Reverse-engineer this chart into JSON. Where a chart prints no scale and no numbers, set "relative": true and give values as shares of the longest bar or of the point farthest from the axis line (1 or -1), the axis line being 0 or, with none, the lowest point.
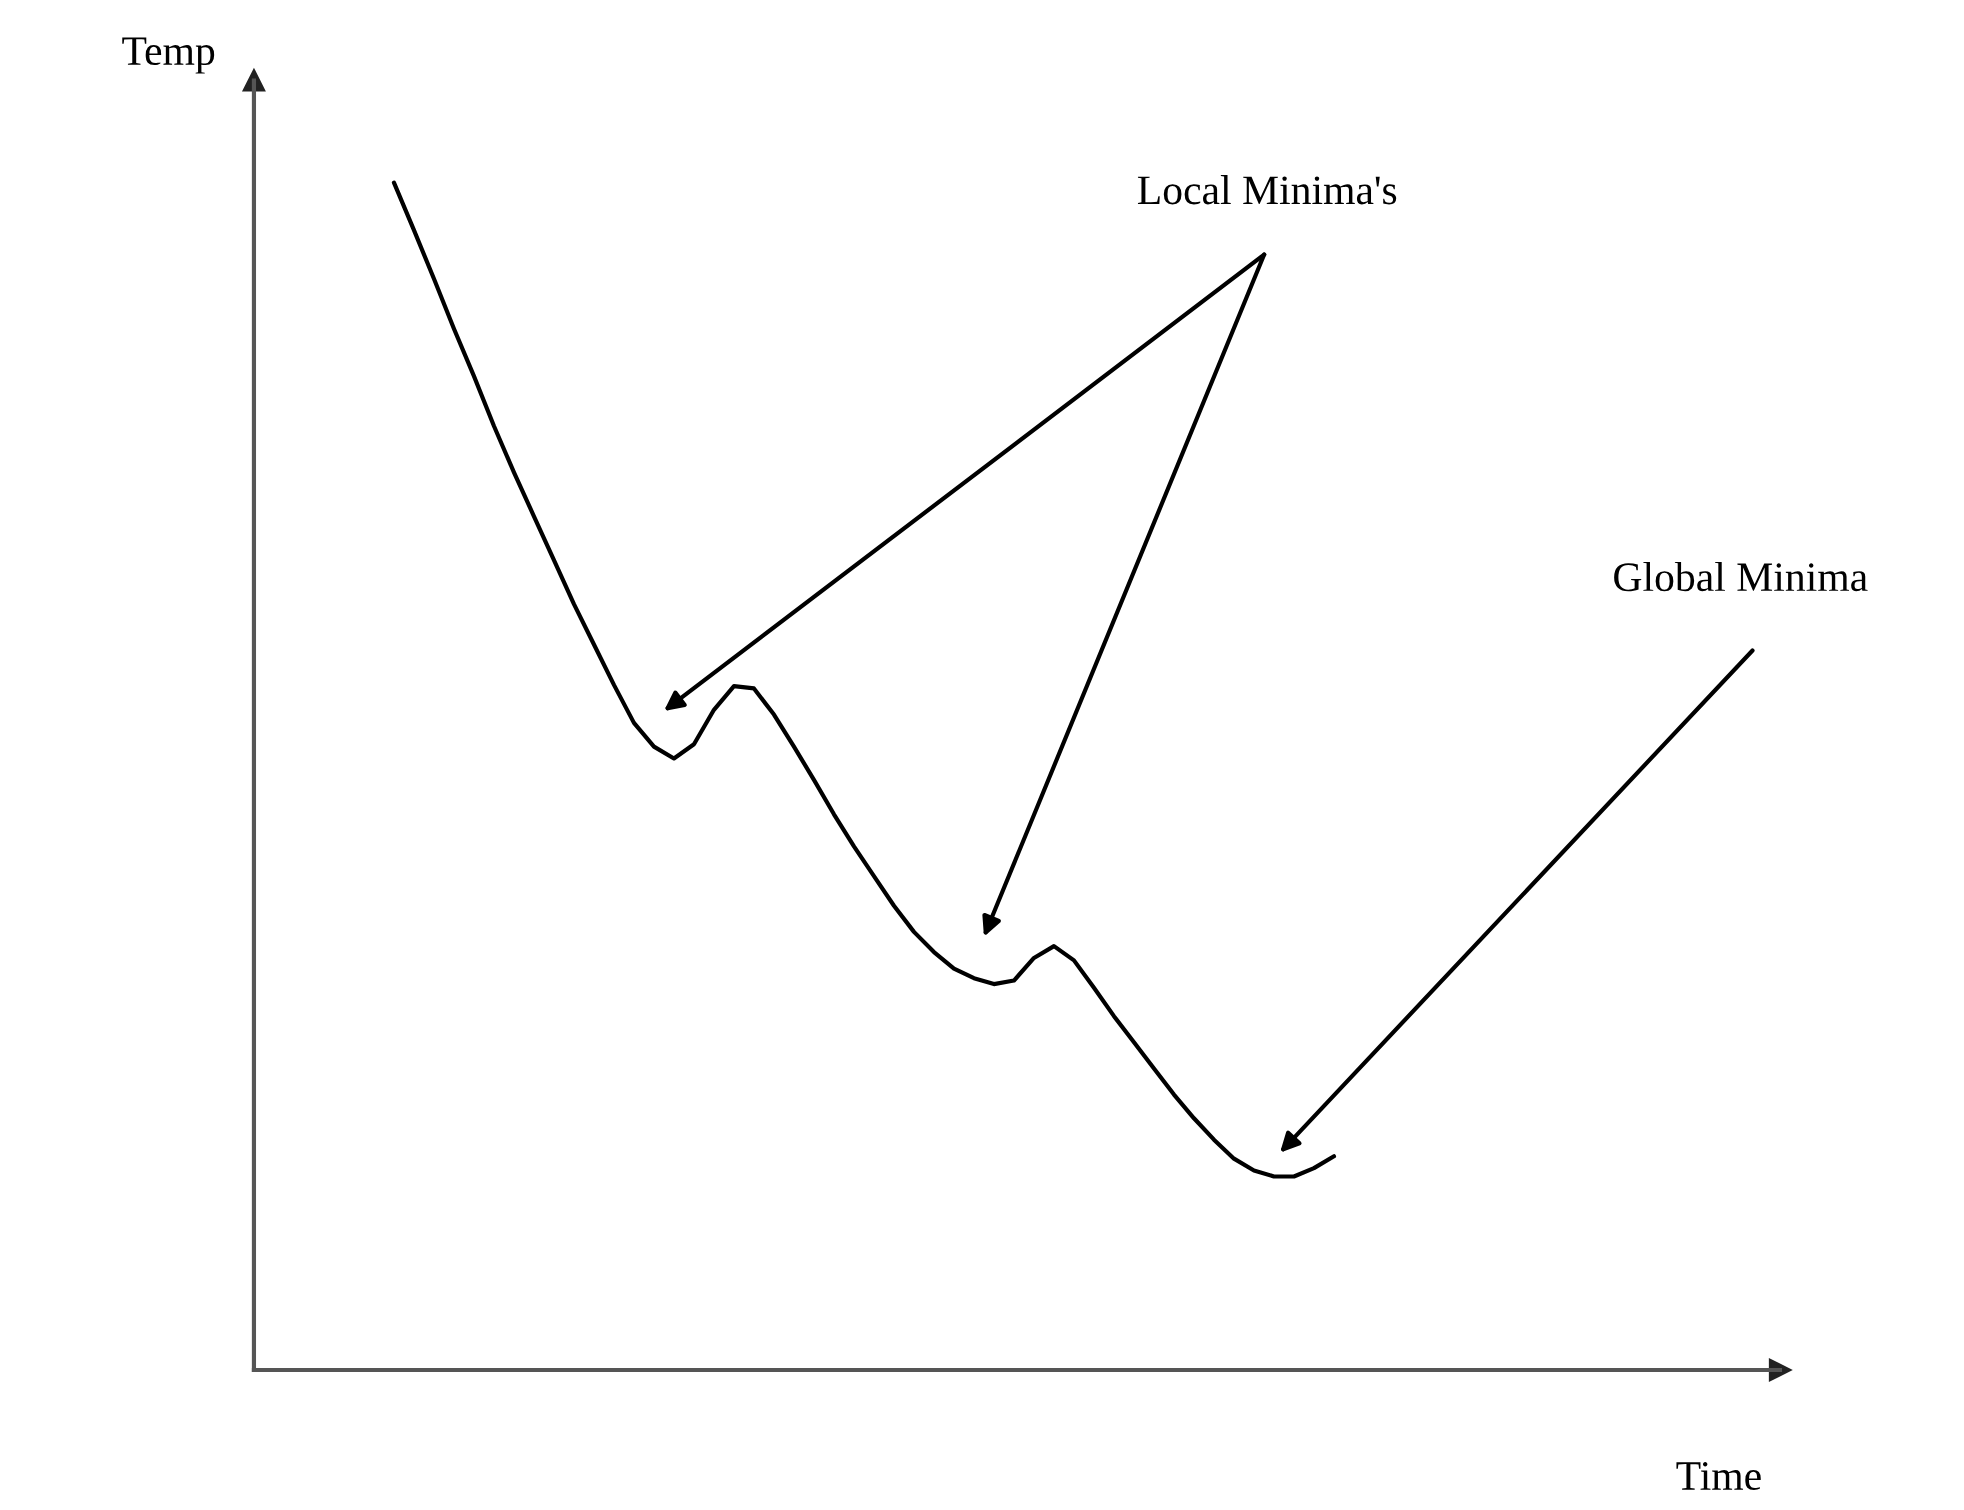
{
  "chart_data": {
    "type": "line",
    "relative": true,
    "ylabel": "Temp",
    "categories": [
      null,
      null,
      null,
      null,
      null,
      null,
      null,
      null,
      null,
      null,
      null,
      null,
      null,
      null,
      null,
      null,
      null,
      null,
      null,
      null,
      null,
      null,
      null,
      null,
      null,
      null,
      null,
      null,
      null,
      null,
      null,
      null,
      null,
      null,
      null,
      null,
      null,
      null,
      null,
      null,
      null,
      null,
      null,
      null,
      null,
      null,
      null,
      null
    ],
    "series": [
      {
        "color": "#000000",
        "values": [
          1.0,
          0.96,
          0.919,
          0.877,
          0.837,
          0.795,
          0.756,
          0.719,
          0.682,
          0.645,
          0.611,
          0.577,
          0.545,
          0.525,
          0.515,
          0.527,
          0.556,
          0.576,
          0.574,
          0.552,
          0.525,
          0.497,
          0.468,
          0.441,
          0.416,
          0.391,
          0.369,
          0.352,
          0.338,
          0.33,
          0.325,
          0.328,
          0.347,
          0.357,
          0.345,
          0.322,
          0.298,
          0.276,
          0.254,
          0.232,
          0.212,
          0.194,
          0.178,
          0.168,
          0.163,
          0.163,
          0.17,
          0.18
        ]
      }
    ],
    "annotations": [
      "Local Minima's",
      "Global Minima",
      "Time"
    ],
    "legend": false
  }
}
